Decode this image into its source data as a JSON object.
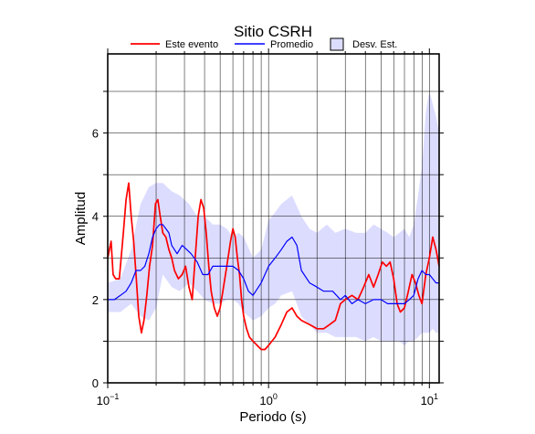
{
  "chart_data": {
    "type": "line",
    "title": "Sitio CSRH",
    "xlabel": "Periodo (s)",
    "ylabel": "Amplitud",
    "xscale": "log",
    "xlim": [
      0.1,
      11.5
    ],
    "ylim": [
      0,
      7.9
    ],
    "grid": true,
    "legend_placement": "top",
    "legend": [
      {
        "label": "Este evento",
        "kind": "line",
        "color": "#ff0000"
      },
      {
        "label": "Promedio",
        "kind": "line",
        "color": "#0000ff"
      },
      {
        "label": "Desv. Est.",
        "kind": "patch",
        "color": "#dcdcff"
      }
    ],
    "x_ticks": [
      {
        "value": 0.1,
        "base": "10",
        "exp": "−1"
      },
      {
        "value": 1,
        "base": "10",
        "exp": "0"
      },
      {
        "value": 10,
        "base": "10",
        "exp": "1"
      }
    ],
    "y_ticks": [
      0,
      2,
      4,
      6
    ],
    "series": [
      {
        "name": "Este evento",
        "color": "#ff0000",
        "x": [
          0.1,
          0.105,
          0.108,
          0.112,
          0.118,
          0.125,
          0.13,
          0.135,
          0.14,
          0.145,
          0.15,
          0.156,
          0.162,
          0.168,
          0.175,
          0.182,
          0.19,
          0.198,
          0.205,
          0.212,
          0.22,
          0.23,
          0.24,
          0.25,
          0.26,
          0.275,
          0.29,
          0.305,
          0.32,
          0.335,
          0.35,
          0.365,
          0.38,
          0.395,
          0.41,
          0.425,
          0.44,
          0.46,
          0.48,
          0.5,
          0.52,
          0.55,
          0.58,
          0.6,
          0.62,
          0.64,
          0.66,
          0.68,
          0.7,
          0.73,
          0.76,
          0.8,
          0.85,
          0.9,
          0.95,
          1.0,
          1.1,
          1.2,
          1.3,
          1.4,
          1.5,
          1.6,
          1.8,
          2.0,
          2.2,
          2.4,
          2.6,
          2.8,
          3.0,
          3.3,
          3.6,
          3.9,
          4.2,
          4.5,
          4.8,
          5.1,
          5.4,
          5.7,
          6.0,
          6.3,
          6.6,
          7.0,
          7.4,
          7.8,
          8.2,
          8.6,
          9.0,
          9.5,
          10.0,
          10.5,
          11.0,
          11.5
        ],
        "values": [
          3.0,
          3.4,
          2.6,
          2.5,
          2.5,
          3.6,
          4.4,
          4.8,
          4.0,
          3.4,
          2.6,
          1.6,
          1.2,
          1.5,
          2.1,
          2.8,
          3.3,
          4.3,
          4.4,
          4.0,
          3.6,
          3.5,
          3.2,
          3.0,
          2.7,
          2.5,
          2.6,
          2.8,
          2.3,
          2.0,
          3.0,
          4.0,
          4.4,
          4.2,
          3.6,
          2.8,
          2.2,
          1.8,
          1.6,
          1.8,
          2.2,
          2.8,
          3.4,
          3.7,
          3.5,
          3.0,
          2.6,
          2.0,
          1.6,
          1.3,
          1.1,
          1.0,
          0.9,
          0.8,
          0.8,
          0.9,
          1.1,
          1.4,
          1.7,
          1.8,
          1.6,
          1.5,
          1.4,
          1.3,
          1.3,
          1.4,
          1.5,
          1.9,
          2.0,
          2.1,
          2.0,
          2.3,
          2.6,
          2.3,
          2.6,
          2.9,
          2.8,
          2.9,
          2.5,
          1.9,
          1.7,
          1.8,
          2.2,
          2.6,
          2.4,
          2.1,
          1.9,
          2.6,
          3.0,
          3.5,
          3.2,
          2.8
        ]
      },
      {
        "name": "Promedio",
        "color": "#0000ff",
        "x": [
          0.1,
          0.11,
          0.12,
          0.13,
          0.14,
          0.15,
          0.16,
          0.17,
          0.18,
          0.19,
          0.2,
          0.21,
          0.22,
          0.23,
          0.24,
          0.25,
          0.27,
          0.29,
          0.31,
          0.33,
          0.36,
          0.39,
          0.42,
          0.45,
          0.5,
          0.55,
          0.6,
          0.65,
          0.7,
          0.75,
          0.8,
          0.9,
          1.0,
          1.1,
          1.2,
          1.3,
          1.4,
          1.5,
          1.6,
          1.8,
          2.0,
          2.2,
          2.5,
          2.8,
          3.0,
          3.3,
          3.6,
          4.0,
          4.5,
          5.0,
          5.5,
          6.0,
          6.5,
          7.0,
          7.5,
          8.0,
          8.5,
          9.0,
          9.5,
          10.0,
          10.5,
          11.0,
          11.5
        ],
        "values": [
          2.0,
          2.0,
          2.1,
          2.2,
          2.4,
          2.7,
          2.7,
          2.8,
          3.1,
          3.5,
          3.7,
          3.8,
          3.8,
          3.7,
          3.6,
          3.3,
          3.1,
          3.3,
          3.2,
          3.1,
          2.9,
          2.6,
          2.6,
          2.8,
          2.8,
          2.8,
          2.8,
          2.7,
          2.5,
          2.2,
          2.1,
          2.4,
          2.8,
          3.0,
          3.2,
          3.4,
          3.5,
          3.3,
          2.7,
          2.4,
          2.3,
          2.2,
          2.2,
          2.0,
          2.1,
          1.9,
          2.0,
          1.9,
          2.0,
          2.0,
          1.9,
          1.9,
          1.9,
          1.9,
          2.0,
          2.1,
          2.5,
          2.7,
          2.6,
          2.6,
          2.5,
          2.4,
          2.4
        ]
      }
    ],
    "band": {
      "name": "Desv. Est.",
      "color": "#dcdcff",
      "x": [
        0.1,
        0.12,
        0.14,
        0.16,
        0.18,
        0.2,
        0.22,
        0.25,
        0.28,
        0.32,
        0.36,
        0.4,
        0.45,
        0.5,
        0.55,
        0.6,
        0.65,
        0.7,
        0.8,
        0.9,
        1.0,
        1.1,
        1.2,
        1.4,
        1.6,
        1.8,
        2.0,
        2.3,
        2.6,
        3.0,
        3.5,
        4.0,
        4.5,
        5.0,
        5.5,
        6.0,
        6.5,
        7.0,
        7.5,
        8.0,
        8.5,
        9.0,
        9.5,
        10.0,
        10.5,
        11.0,
        11.5
      ],
      "upper": [
        2.4,
        2.5,
        3.2,
        4.3,
        4.7,
        4.8,
        4.8,
        4.6,
        4.5,
        4.3,
        4.0,
        4.0,
        3.8,
        3.8,
        3.7,
        3.5,
        3.6,
        3.5,
        3.0,
        3.2,
        3.9,
        4.1,
        4.3,
        4.5,
        4.0,
        3.7,
        3.6,
        3.8,
        3.6,
        3.7,
        3.6,
        3.6,
        3.8,
        3.7,
        3.6,
        3.5,
        3.6,
        3.7,
        3.5,
        3.8,
        4.5,
        5.2,
        6.5,
        7.0,
        6.7,
        6.4,
        6.0
      ],
      "lower": [
        1.7,
        1.7,
        1.9,
        1.6,
        1.5,
        1.8,
        2.6,
        2.3,
        2.2,
        2.4,
        2.2,
        2.0,
        1.9,
        1.9,
        2.0,
        2.0,
        1.9,
        1.7,
        1.5,
        1.6,
        1.8,
        1.9,
        2.1,
        2.2,
        1.6,
        1.4,
        1.2,
        1.2,
        1.1,
        1.1,
        1.1,
        1.0,
        1.1,
        1.0,
        1.0,
        1.0,
        1.0,
        0.9,
        1.0,
        1.0,
        1.1,
        1.2,
        1.2,
        1.2,
        1.3,
        1.2,
        1.2
      ]
    }
  }
}
